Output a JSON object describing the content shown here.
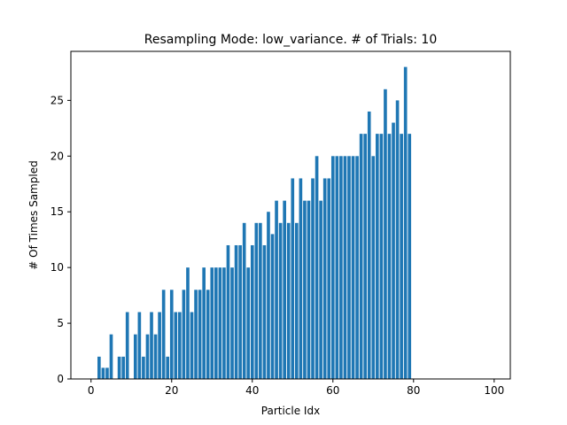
{
  "chart_data": {
    "type": "bar",
    "title": "Resampling Mode: low_variance. # of Trials: 10",
    "xlabel": "Particle Idx",
    "ylabel": "# Of Times Sampled",
    "xlim": [
      -5,
      104
    ],
    "ylim": [
      0,
      29.4
    ],
    "xticks": [
      0,
      20,
      40,
      60,
      80,
      100
    ],
    "yticks": [
      0,
      5,
      10,
      15,
      20,
      25
    ],
    "grid": false,
    "bar_color": "#1f77b4",
    "x": [
      0,
      1,
      2,
      3,
      4,
      5,
      6,
      7,
      8,
      9,
      10,
      11,
      12,
      13,
      14,
      15,
      16,
      17,
      18,
      19,
      20,
      21,
      22,
      23,
      24,
      25,
      26,
      27,
      28,
      29,
      30,
      31,
      32,
      33,
      34,
      35,
      36,
      37,
      38,
      39,
      40,
      41,
      42,
      43,
      44,
      45,
      46,
      47,
      48,
      49,
      50,
      51,
      52,
      53,
      54,
      55,
      56,
      57,
      58,
      59,
      60,
      61,
      62,
      63,
      64,
      65,
      66,
      67,
      68,
      69,
      70,
      71,
      72,
      73,
      74,
      75,
      76,
      77,
      78,
      79
    ],
    "values": [
      0,
      0,
      2,
      1,
      1,
      4,
      0,
      2,
      2,
      6,
      0,
      4,
      6,
      2,
      4,
      6,
      4,
      6,
      8,
      2,
      8,
      6,
      6,
      8,
      10,
      6,
      8,
      8,
      10,
      8,
      10,
      10,
      10,
      10,
      12,
      10,
      12,
      12,
      14,
      10,
      12,
      14,
      14,
      12,
      15,
      13,
      16,
      14,
      16,
      14,
      18,
      14,
      18,
      16,
      16,
      18,
      20,
      16,
      18,
      18,
      20,
      20,
      20,
      20,
      20,
      20,
      20,
      22,
      22,
      24,
      20,
      22,
      22,
      26,
      22,
      23,
      25,
      22,
      28,
      22
    ]
  }
}
